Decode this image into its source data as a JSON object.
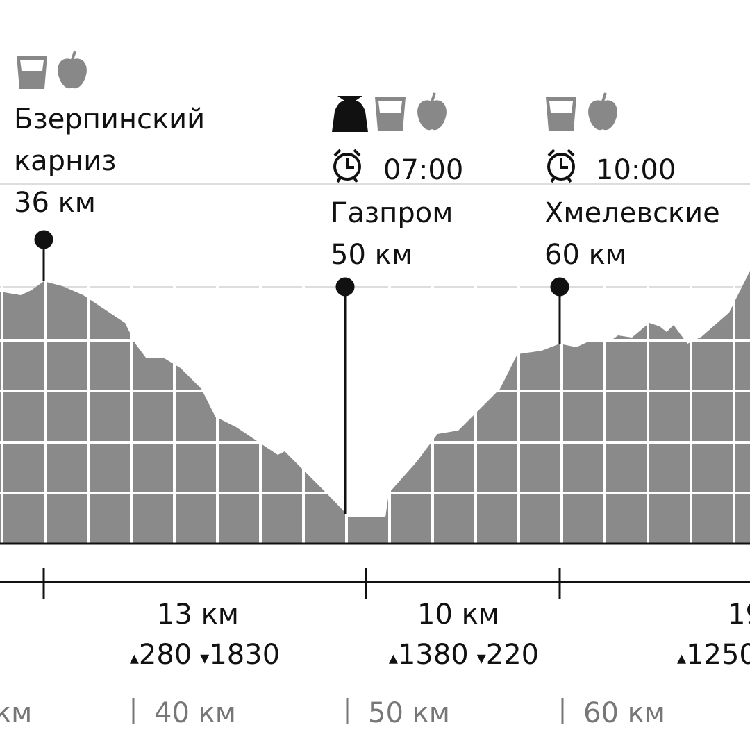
{
  "checkpoints": [
    {
      "name_lines": [
        "Бзерпинский",
        "карниз"
      ],
      "distance": "36 км"
    },
    {
      "time": "07:00",
      "name": "Газпром",
      "distance": "50 км"
    },
    {
      "time": "10:00",
      "name": "Хмелевские",
      "distance": "60 км"
    }
  ],
  "segments": [
    {
      "distance": "13 км",
      "ascent": "280",
      "descent": "1830"
    },
    {
      "distance": "10 км",
      "ascent": "1380",
      "descent": "220"
    },
    {
      "distance": "19",
      "ascent": "1250"
    }
  ],
  "km_labels": [
    "км",
    "40 км",
    "50 км",
    "60 км"
  ]
}
